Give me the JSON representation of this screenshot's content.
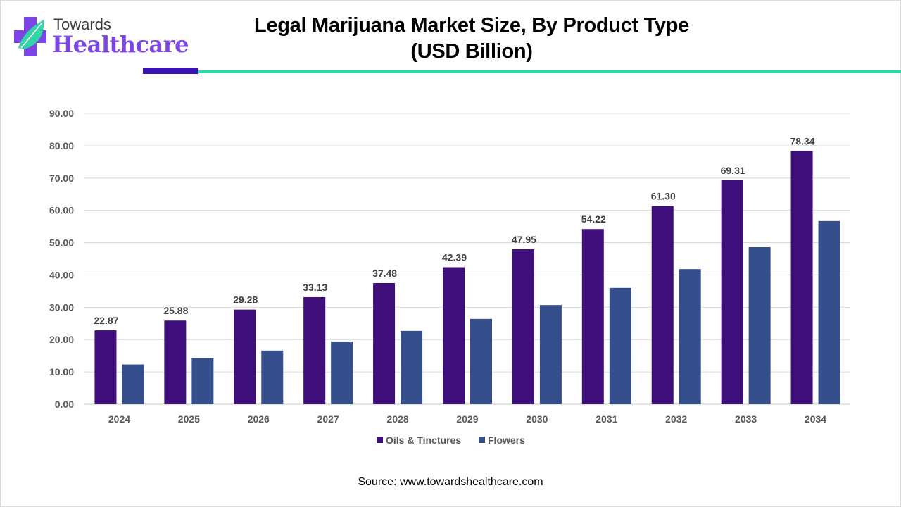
{
  "brand": {
    "logo_top": "Towards",
    "logo_bottom": "Healthcare",
    "logo_icon": "medical-cross-leaf-icon",
    "primary_color": "#7c45e6",
    "accent_dark": "#3a13b0",
    "accent_teal": "#35d4a7"
  },
  "title_line1": "Legal Marijuana Market Size, By Product Type",
  "title_line2": "(USD Billion)",
  "source": "Source: www.towardshealthcare.com",
  "chart_data": {
    "type": "bar",
    "title": "Legal Marijuana Market Size, By Product Type (USD Billion)",
    "xlabel": "",
    "ylabel": "",
    "ylim": [
      0,
      90
    ],
    "yticks": [
      "0.00",
      "10.00",
      "20.00",
      "30.00",
      "40.00",
      "50.00",
      "60.00",
      "70.00",
      "80.00",
      "90.00"
    ],
    "grid": true,
    "legend_position": "bottom",
    "categories": [
      "2024",
      "2025",
      "2026",
      "2027",
      "2028",
      "2029",
      "2030",
      "2031",
      "2032",
      "2033",
      "2034"
    ],
    "series": [
      {
        "name": "Oils & Tinctures",
        "color": "#3e0f7a",
        "values": [
          22.87,
          25.88,
          29.28,
          33.13,
          37.48,
          42.39,
          47.95,
          54.22,
          61.3,
          69.31,
          78.34
        ],
        "labels": [
          "22.87",
          "25.88",
          "29.28",
          "33.13",
          "37.48",
          "42.39",
          "47.95",
          "54.22",
          "61.30",
          "69.31",
          "78.34"
        ],
        "show_labels": true
      },
      {
        "name": "Flowers",
        "color": "#354e8c",
        "values": [
          12.3,
          14.2,
          16.6,
          19.4,
          22.7,
          26.4,
          30.7,
          36.0,
          41.8,
          48.6,
          56.7
        ],
        "show_labels": false
      }
    ]
  }
}
